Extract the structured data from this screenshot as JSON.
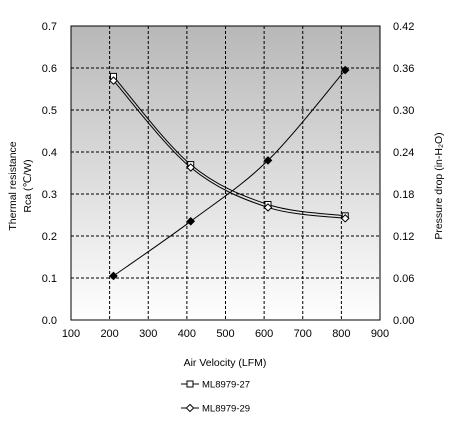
{
  "chart_data": {
    "type": "line",
    "title": "",
    "xlabel": "Air Velocity (LFM)",
    "ylabel_left": [
      "Thermal resistance",
      "Rca (℃/W)"
    ],
    "ylabel_right": "Pressure drop (in-H₂O)",
    "xlim": [
      100,
      900
    ],
    "ylim_left": [
      0,
      0.7
    ],
    "ylim_right": [
      0,
      0.42
    ],
    "x_ticks": [
      "100",
      "200",
      "300",
      "400",
      "500",
      "600",
      "700",
      "800",
      "900"
    ],
    "y_left_ticks": [
      "0.0",
      "0.1",
      "0.2",
      "0.3",
      "0.4",
      "0.5",
      "0.6",
      "0.7"
    ],
    "y_right_ticks": [
      "0.00",
      "0.06",
      "0.12",
      "0.18",
      "0.24",
      "0.30",
      "0.36",
      "0.42"
    ],
    "grid": true,
    "legend_position": "bottom",
    "plot_background": "#c0c0c0",
    "series": [
      {
        "name": "ML8979-27",
        "axis": "left",
        "marker": "square-open",
        "x": [
          210,
          410,
          610,
          810
        ],
        "y": [
          0.58,
          0.37,
          0.275,
          0.248
        ]
      },
      {
        "name": "ML8979-29",
        "axis": "left",
        "marker": "diamond-open",
        "x": [
          210,
          410,
          610,
          810
        ],
        "y": [
          0.57,
          0.363,
          0.268,
          0.242
        ]
      },
      {
        "name": "",
        "axis": "right",
        "marker": "diamond-filled",
        "x": [
          210,
          410,
          610,
          810
        ],
        "y": [
          0.063,
          0.141,
          0.228,
          0.357
        ]
      }
    ]
  }
}
